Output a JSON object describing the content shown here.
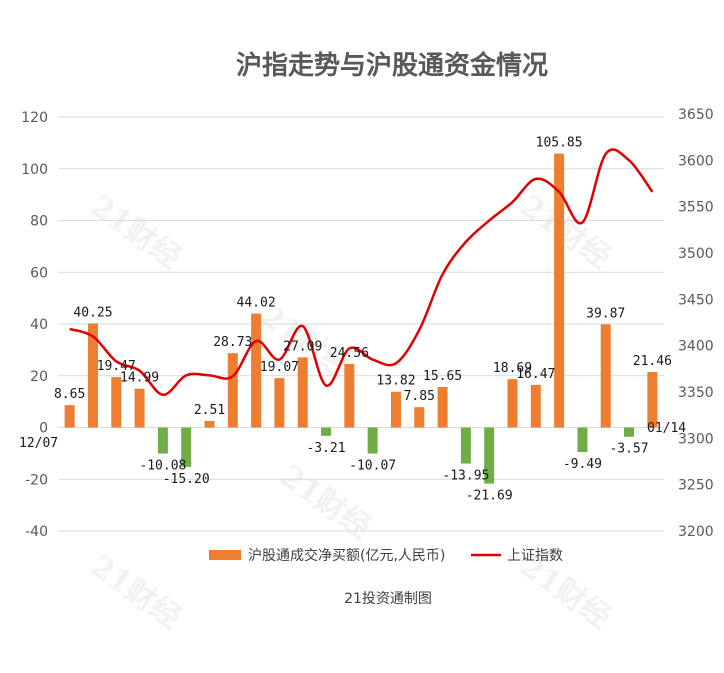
{
  "chart_data": {
    "type": "bar",
    "title": "沪指走势与沪股通资金情况",
    "credit": "21投资通制图",
    "watermark": "21财经",
    "x_start_label": "12/07",
    "x_end_label": "01/14",
    "y_left": {
      "ticks": [
        "120",
        "100",
        "80",
        "60",
        "40",
        "20",
        "0",
        "-20",
        "-40"
      ],
      "ylim": [
        -40,
        120
      ]
    },
    "y_right": {
      "ticks": [
        "3650",
        "3600",
        "3550",
        "3500",
        "3450",
        "3400",
        "3350",
        "3300",
        "3250",
        "3200"
      ],
      "ylim": [
        3200,
        3650
      ]
    },
    "colors": {
      "positive": "#ed7d31",
      "negative": "#70ad47",
      "line": "#e00000",
      "grid": "#d9d9d9"
    },
    "series": [
      {
        "name": "沪股通成交净买额(亿元,人民币)",
        "type": "bar",
        "values": [
          8.65,
          40.25,
          19.47,
          14.99,
          -10.08,
          -15.2,
          2.51,
          28.73,
          44.02,
          19.07,
          27.09,
          -3.21,
          24.56,
          -10.07,
          13.82,
          7.85,
          15.65,
          -13.95,
          -21.69,
          18.69,
          16.47,
          105.85,
          -9.49,
          39.87,
          -3.57,
          21.46
        ],
        "labels": [
          "8.65",
          "40.25",
          "19.47",
          "14.99",
          "-10.08",
          "-15.20",
          "2.51",
          "28.73",
          "44.02",
          "19.07",
          "27.09",
          "-3.21",
          "24.56",
          "-10.07",
          "13.82",
          "7.85",
          "15.65",
          "-13.95",
          "-21.69",
          "18.69",
          "16.47",
          "105.85",
          "-9.49",
          "39.87",
          "-3.57",
          "21.46"
        ]
      },
      {
        "name": "上证指数",
        "type": "line",
        "values": [
          3418,
          3410,
          3383,
          3373,
          3347,
          3368,
          3368,
          3367,
          3405,
          3385,
          3421,
          3357,
          3397,
          3385,
          3381,
          3417,
          3477,
          3512,
          3535,
          3555,
          3580,
          3566,
          3533,
          3607,
          3600,
          3566
        ]
      }
    ]
  }
}
